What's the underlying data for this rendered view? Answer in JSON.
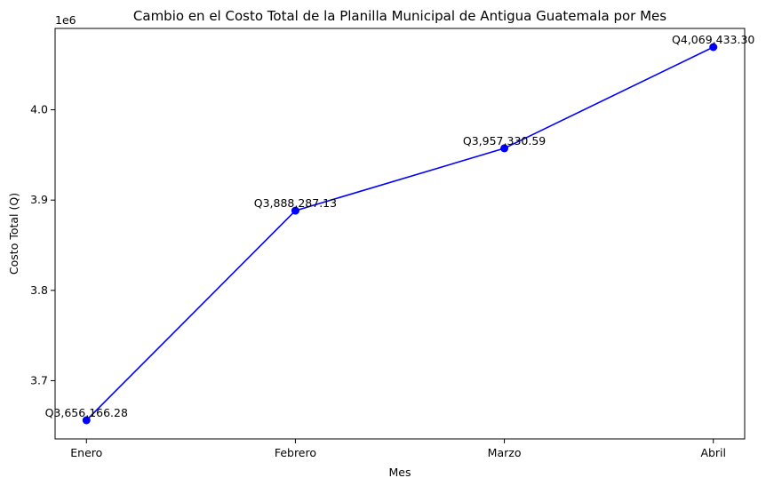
{
  "chart_data": {
    "type": "line",
    "title": "Cambio en el Costo Total de la Planilla Municipal de Antigua Guatemala por Mes",
    "xlabel": "Mes",
    "ylabel": "Costo Total (Q)",
    "y_offset_text": "1e6",
    "categories": [
      "Enero",
      "Febrero",
      "Marzo",
      "Abril"
    ],
    "values": [
      3656166.28,
      3888287.13,
      3957330.59,
      4069433.3
    ],
    "value_labels": [
      "Q3,656,166.28",
      "Q3,888,287.13",
      "Q3,957,330.59",
      "Q4,069,433.30"
    ],
    "color": "#0000ff",
    "ylim": [
      3635503,
      4090097
    ],
    "yticks": [
      {
        "value": 3700000,
        "label": "3.7"
      },
      {
        "value": 3800000,
        "label": "3.8"
      },
      {
        "value": 3900000,
        "label": "3.9"
      },
      {
        "value": 4000000,
        "label": "4.0"
      }
    ],
    "grid": false
  }
}
